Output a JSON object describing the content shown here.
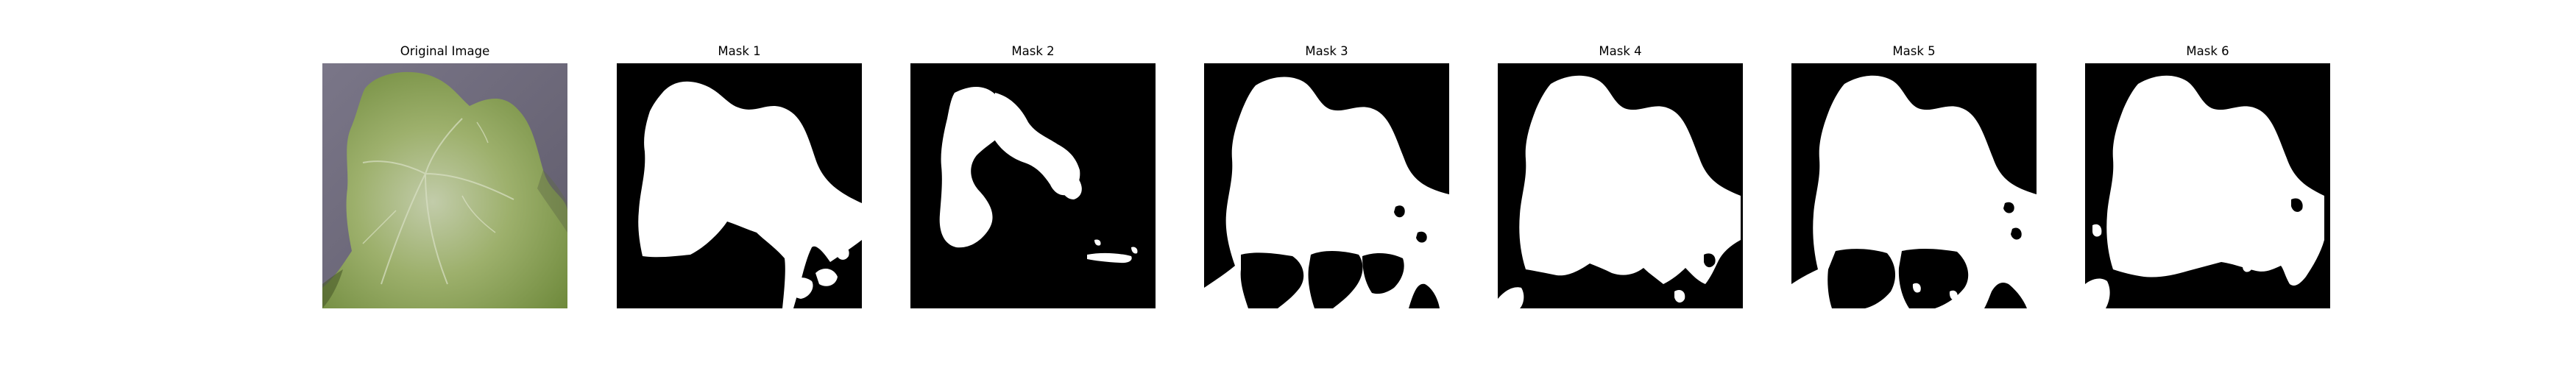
{
  "figure": {
    "panels": [
      {
        "title": "Original Image",
        "kind": "photo"
      },
      {
        "title": "Mask 1",
        "kind": "mask"
      },
      {
        "title": "Mask 2",
        "kind": "mask"
      },
      {
        "title": "Mask 3",
        "kind": "mask"
      },
      {
        "title": "Mask 4",
        "kind": "mask"
      },
      {
        "title": "Mask 5",
        "kind": "mask"
      },
      {
        "title": "Mask 6",
        "kind": "mask"
      }
    ]
  },
  "colors": {
    "background": "#ffffff",
    "mask_foreground": "#ffffff",
    "mask_background": "#000000",
    "leaf_green": "#8fa65e",
    "photo_background": "#6e6a7a"
  }
}
